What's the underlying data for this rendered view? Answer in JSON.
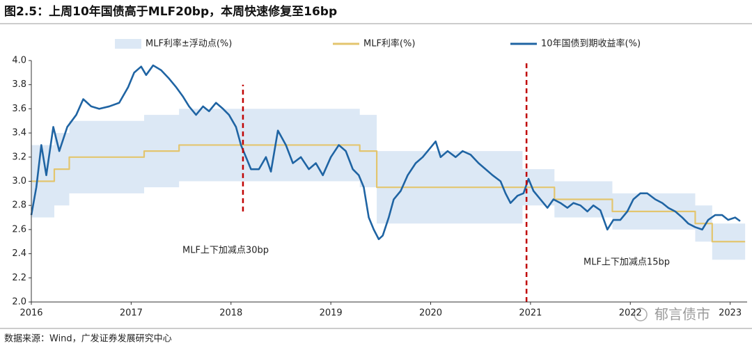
{
  "chart_data": {
    "type": "line",
    "title": "图2.5：上周10年国债高于MLF20bp，本周快速修复至16bp",
    "source": "数据来源：Wind，广发证券发展研究中心",
    "watermark": "郁言债市",
    "annotations": [
      "MLF上下加减点30bp",
      "MLF上下加减点15bp"
    ],
    "xlim": [
      2016,
      2023.17
    ],
    "xticks": [
      2016,
      2017,
      2018,
      2019,
      2020,
      2021,
      2022,
      2023
    ],
    "ylim": [
      2,
      4
    ],
    "yticks": [
      {
        "value": 2,
        "label": "2.0"
      },
      {
        "value": 2.2,
        "label": "2.2"
      },
      {
        "value": 2.4,
        "label": "2.4"
      },
      {
        "value": 2.6,
        "label": "2.6"
      },
      {
        "value": 2.8,
        "label": "2.8"
      },
      {
        "value": 3,
        "label": "3.0"
      },
      {
        "value": 3.2,
        "label": "3.2"
      },
      {
        "value": 3.4,
        "label": "3.4"
      },
      {
        "value": 3.6,
        "label": "3.6"
      },
      {
        "value": 3.8,
        "label": "3.8"
      },
      {
        "value": 4,
        "label": "4.0"
      }
    ],
    "grid": false,
    "legend": "top",
    "reference_lines": [
      {
        "x": 2018.12,
        "y": [
          2.75,
          3.8
        ],
        "color": "#c00000"
      },
      {
        "x": 2020.96,
        "y": [
          2,
          3.98
        ],
        "color": "#c00000"
      }
    ],
    "series": [
      {
        "name": "MLF利率±浮动点(%)",
        "style": "band",
        "color": "#dce8f5",
        "x": [
          2016.0,
          2016.23,
          2016.23,
          2016.38,
          2016.38,
          2017.13,
          2017.13,
          2017.48,
          2017.48,
          2019.29,
          2019.29,
          2019.46,
          2019.46,
          2020.92,
          2020.92,
          2021.24,
          2021.24,
          2021.82,
          2021.82,
          2022.65,
          2022.65,
          2022.82,
          2022.82,
          2023.15
        ],
        "upper": [
          3.3,
          3.3,
          3.4,
          3.4,
          3.5,
          3.5,
          3.55,
          3.55,
          3.6,
          3.6,
          3.55,
          3.55,
          3.25,
          3.25,
          3.1,
          3.1,
          3.0,
          3.0,
          2.9,
          2.9,
          2.8,
          2.8,
          2.65,
          2.65
        ],
        "lower": [
          2.7,
          2.7,
          2.8,
          2.8,
          2.9,
          2.9,
          2.95,
          2.95,
          3.0,
          3.0,
          2.95,
          2.95,
          2.65,
          2.65,
          2.8,
          2.8,
          2.7,
          2.7,
          2.6,
          2.6,
          2.5,
          2.5,
          2.35,
          2.35
        ]
      },
      {
        "name": "MLF利率(%)",
        "style": "line",
        "color": "#e3c56e",
        "x": [
          2016.0,
          2016.23,
          2016.23,
          2016.38,
          2016.38,
          2017.13,
          2017.13,
          2017.48,
          2017.48,
          2019.29,
          2019.29,
          2019.46,
          2019.46,
          2021.24,
          2021.24,
          2021.82,
          2021.82,
          2022.65,
          2022.65,
          2022.82,
          2022.82,
          2023.15
        ],
        "values": [
          3.0,
          3.0,
          3.1,
          3.1,
          3.2,
          3.2,
          3.25,
          3.25,
          3.3,
          3.3,
          3.25,
          3.25,
          2.95,
          2.95,
          2.85,
          2.85,
          2.75,
          2.75,
          2.65,
          2.65,
          2.5,
          2.5
        ]
      },
      {
        "name": "10年国债到期收益率(%)",
        "style": "line",
        "color": "#1f64a3",
        "x": [
          2016.0,
          2016.05,
          2016.1,
          2016.15,
          2016.22,
          2016.28,
          2016.36,
          2016.45,
          2016.52,
          2016.6,
          2016.68,
          2016.78,
          2016.88,
          2016.97,
          2017.03,
          2017.1,
          2017.15,
          2017.22,
          2017.3,
          2017.38,
          2017.45,
          2017.52,
          2017.58,
          2017.65,
          2017.72,
          2017.78,
          2017.85,
          2017.92,
          2017.98,
          2018.05,
          2018.1,
          2018.15,
          2018.2,
          2018.28,
          2018.35,
          2018.4,
          2018.47,
          2018.55,
          2018.62,
          2018.7,
          2018.78,
          2018.85,
          2018.92,
          2019.0,
          2019.08,
          2019.15,
          2019.22,
          2019.28,
          2019.33,
          2019.38,
          2019.43,
          2019.48,
          2019.52,
          2019.58,
          2019.63,
          2019.7,
          2019.77,
          2019.85,
          2019.92,
          2020.0,
          2020.05,
          2020.1,
          2020.17,
          2020.25,
          2020.32,
          2020.4,
          2020.48,
          2020.55,
          2020.62,
          2020.7,
          2020.75,
          2020.8,
          2020.87,
          2020.93,
          2020.98,
          2021.03,
          2021.1,
          2021.17,
          2021.23,
          2021.3,
          2021.37,
          2021.43,
          2021.5,
          2021.57,
          2021.63,
          2021.7,
          2021.77,
          2021.83,
          2021.9,
          2021.97,
          2022.03,
          2022.1,
          2022.17,
          2022.25,
          2022.32,
          2022.38,
          2022.45,
          2022.52,
          2022.58,
          2022.65,
          2022.72,
          2022.78,
          2022.85,
          2022.92,
          2022.98,
          2023.05,
          2023.1
        ],
        "values": [
          2.72,
          2.95,
          3.3,
          3.05,
          3.45,
          3.25,
          3.45,
          3.55,
          3.68,
          3.62,
          3.6,
          3.62,
          3.65,
          3.78,
          3.9,
          3.95,
          3.88,
          3.96,
          3.92,
          3.85,
          3.78,
          3.7,
          3.62,
          3.55,
          3.62,
          3.58,
          3.65,
          3.6,
          3.55,
          3.45,
          3.3,
          3.2,
          3.1,
          3.1,
          3.2,
          3.08,
          3.42,
          3.3,
          3.15,
          3.2,
          3.1,
          3.15,
          3.05,
          3.2,
          3.3,
          3.25,
          3.1,
          3.05,
          2.95,
          2.7,
          2.6,
          2.52,
          2.55,
          2.7,
          2.85,
          2.92,
          3.05,
          3.15,
          3.2,
          3.28,
          3.33,
          3.2,
          3.25,
          3.2,
          3.25,
          3.22,
          3.15,
          3.1,
          3.05,
          3.0,
          2.9,
          2.82,
          2.88,
          2.9,
          3.02,
          2.92,
          2.85,
          2.78,
          2.85,
          2.82,
          2.78,
          2.82,
          2.8,
          2.75,
          2.8,
          2.76,
          2.6,
          2.68,
          2.68,
          2.75,
          2.85,
          2.9,
          2.9,
          2.85,
          2.82,
          2.78,
          2.75,
          2.7,
          2.65,
          2.62,
          2.6,
          2.68,
          2.72,
          2.72,
          2.68,
          2.7,
          2.67
        ]
      }
    ]
  }
}
